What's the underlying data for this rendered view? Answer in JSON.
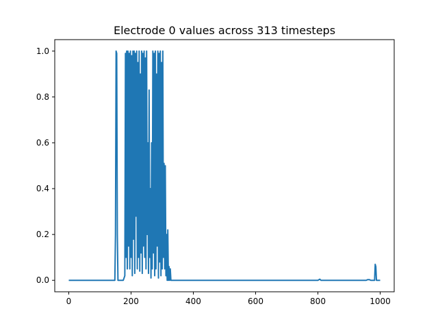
{
  "chart_data": {
    "type": "line",
    "title": "Electrode 0 values across 313 timesteps",
    "xlabel": "",
    "ylabel": "",
    "xlim": [
      -45,
      1045
    ],
    "ylim": [
      -0.05,
      1.05
    ],
    "x_ticks": [
      0,
      200,
      400,
      600,
      800,
      1000
    ],
    "x_tick_labels": [
      "0",
      "200",
      "400",
      "600",
      "800",
      "1000"
    ],
    "y_ticks": [
      0.0,
      0.2,
      0.4,
      0.6,
      0.8,
      1.0
    ],
    "y_tick_labels": [
      "0.0",
      "0.2",
      "0.4",
      "0.6",
      "0.8",
      "1.0"
    ],
    "grid": false,
    "legend": "none",
    "series": [
      {
        "color": "#1f77b4",
        "x": [
          0,
          148,
          150,
          152,
          154,
          156,
          158,
          160,
          175,
          180,
          182,
          184,
          186,
          188,
          190,
          192,
          194,
          196,
          198,
          200,
          202,
          204,
          206,
          208,
          210,
          212,
          214,
          216,
          218,
          220,
          222,
          224,
          226,
          228,
          230,
          232,
          234,
          236,
          238,
          240,
          242,
          244,
          246,
          248,
          250,
          252,
          254,
          256,
          258,
          260,
          262,
          264,
          266,
          268,
          270,
          272,
          274,
          276,
          278,
          280,
          282,
          284,
          286,
          288,
          290,
          292,
          294,
          296,
          298,
          300,
          302,
          304,
          306,
          308,
          310,
          312,
          314,
          316,
          318,
          320,
          322,
          324,
          326,
          328,
          330,
          332,
          340,
          800,
          806,
          810,
          955,
          960,
          965,
          970,
          978,
          982,
          984,
          986,
          988,
          992,
          1000
        ],
        "y": [
          0,
          0,
          0.2,
          1.0,
          0.99,
          0.2,
          0,
          0,
          0,
          0.02,
          0.99,
          0.1,
          1.0,
          0.05,
          1.0,
          0.15,
          0.99,
          0.05,
          1.0,
          0.1,
          0.98,
          0.02,
          1.0,
          0.18,
          1.0,
          0.03,
          0.99,
          0.28,
          1.0,
          0.05,
          0.95,
          0.1,
          1.0,
          0.04,
          0.9,
          0.12,
          1.0,
          0.03,
          0.99,
          0.15,
          1.0,
          0.1,
          0.97,
          0.05,
          1.0,
          0.2,
          0.6,
          0.03,
          0.83,
          0.1,
          0.4,
          0.01,
          0.6,
          0.05,
          1.0,
          0.12,
          0.99,
          0.02,
          1.0,
          0.05,
          0.9,
          0.15,
          1.0,
          0.01,
          0.99,
          0.08,
          1.0,
          0.02,
          0.95,
          0.05,
          1.0,
          0.1,
          0.51,
          0.05,
          0.5,
          0.02,
          0.2,
          0.0,
          0.22,
          0.0,
          0.06,
          0.0,
          0.05,
          0.0,
          0.0,
          0.0,
          0.0,
          0.0,
          0.005,
          0.0,
          0.0,
          0.003,
          0.003,
          0.0,
          0.0,
          0.0,
          0.07,
          0.06,
          0.0,
          0.0,
          0.0
        ]
      }
    ]
  }
}
